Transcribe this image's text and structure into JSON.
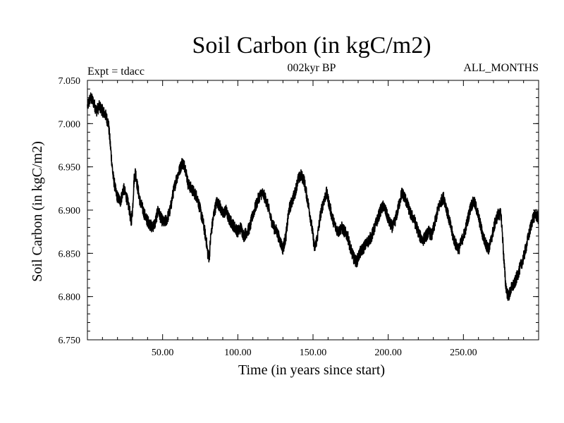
{
  "chart_data": {
    "type": "line",
    "title": "Soil Carbon (in kgC/m2)",
    "subtitle": "002kyr BP",
    "left_label": "Expt = tdacc",
    "right_label": "ALL_MONTHS",
    "xlabel": "Time (in years since start)",
    "ylabel": "Soil Carbon (in kgC/m2)",
    "xlim": [
      0,
      300
    ],
    "ylim": [
      6.75,
      7.05
    ],
    "x_ticks": [
      50,
      100,
      150,
      200,
      250
    ],
    "x_tick_labels": [
      "50.00",
      "100.00",
      "150.00",
      "200.00",
      "250.00"
    ],
    "y_ticks": [
      6.75,
      6.8,
      6.85,
      6.9,
      6.95,
      7.0,
      7.05
    ],
    "y_tick_labels": [
      "6.750",
      "6.800",
      "6.850",
      "6.900",
      "6.950",
      "7.000",
      "7.050"
    ],
    "noise_amplitude": 0.007,
    "series": [
      {
        "name": "Soil Carbon",
        "color": "#000000",
        "points": [
          [
            0,
            7.02
          ],
          [
            2,
            7.03
          ],
          [
            4,
            7.025
          ],
          [
            6,
            7.015
          ],
          [
            8,
            7.02
          ],
          [
            10,
            7.015
          ],
          [
            12,
            7.01
          ],
          [
            14,
            7.0
          ],
          [
            15,
            6.98
          ],
          [
            16,
            6.96
          ],
          [
            17,
            6.94
          ],
          [
            18,
            6.93
          ],
          [
            19,
            6.92
          ],
          [
            20,
            6.915
          ],
          [
            22,
            6.91
          ],
          [
            24,
            6.925
          ],
          [
            26,
            6.915
          ],
          [
            28,
            6.9
          ],
          [
            29,
            6.885
          ],
          [
            30,
            6.9
          ],
          [
            31,
            6.935
          ],
          [
            32,
            6.945
          ],
          [
            33,
            6.93
          ],
          [
            35,
            6.91
          ],
          [
            37,
            6.9
          ],
          [
            39,
            6.89
          ],
          [
            41,
            6.885
          ],
          [
            43,
            6.88
          ],
          [
            45,
            6.885
          ],
          [
            47,
            6.9
          ],
          [
            49,
            6.89
          ],
          [
            51,
            6.885
          ],
          [
            53,
            6.89
          ],
          [
            55,
            6.9
          ],
          [
            57,
            6.92
          ],
          [
            59,
            6.935
          ],
          [
            61,
            6.945
          ],
          [
            63,
            6.955
          ],
          [
            65,
            6.95
          ],
          [
            67,
            6.93
          ],
          [
            69,
            6.925
          ],
          [
            71,
            6.92
          ],
          [
            73,
            6.915
          ],
          [
            75,
            6.9
          ],
          [
            77,
            6.885
          ],
          [
            79,
            6.865
          ],
          [
            80,
            6.85
          ],
          [
            81,
            6.845
          ],
          [
            82,
            6.87
          ],
          [
            84,
            6.895
          ],
          [
            86,
            6.91
          ],
          [
            88,
            6.905
          ],
          [
            90,
            6.895
          ],
          [
            92,
            6.9
          ],
          [
            94,
            6.89
          ],
          [
            96,
            6.885
          ],
          [
            98,
            6.88
          ],
          [
            100,
            6.875
          ],
          [
            102,
            6.88
          ],
          [
            104,
            6.87
          ],
          [
            106,
            6.875
          ],
          [
            108,
            6.88
          ],
          [
            110,
            6.895
          ],
          [
            112,
            6.905
          ],
          [
            114,
            6.915
          ],
          [
            116,
            6.92
          ],
          [
            118,
            6.915
          ],
          [
            120,
            6.905
          ],
          [
            122,
            6.89
          ],
          [
            124,
            6.88
          ],
          [
            126,
            6.875
          ],
          [
            128,
            6.865
          ],
          [
            130,
            6.855
          ],
          [
            132,
            6.87
          ],
          [
            134,
            6.9
          ],
          [
            136,
            6.91
          ],
          [
            138,
            6.92
          ],
          [
            140,
            6.935
          ],
          [
            142,
            6.94
          ],
          [
            144,
            6.935
          ],
          [
            146,
            6.915
          ],
          [
            148,
            6.895
          ],
          [
            150,
            6.87
          ],
          [
            151,
            6.855
          ],
          [
            153,
            6.87
          ],
          [
            155,
            6.895
          ],
          [
            157,
            6.91
          ],
          [
            159,
            6.92
          ],
          [
            161,
            6.905
          ],
          [
            163,
            6.89
          ],
          [
            165,
            6.88
          ],
          [
            167,
            6.875
          ],
          [
            169,
            6.88
          ],
          [
            171,
            6.875
          ],
          [
            173,
            6.87
          ],
          [
            175,
            6.855
          ],
          [
            177,
            6.845
          ],
          [
            179,
            6.84
          ],
          [
            181,
            6.85
          ],
          [
            183,
            6.855
          ],
          [
            185,
            6.86
          ],
          [
            187,
            6.865
          ],
          [
            189,
            6.87
          ],
          [
            191,
            6.88
          ],
          [
            193,
            6.89
          ],
          [
            195,
            6.9
          ],
          [
            197,
            6.905
          ],
          [
            199,
            6.895
          ],
          [
            201,
            6.885
          ],
          [
            203,
            6.88
          ],
          [
            205,
            6.89
          ],
          [
            207,
            6.905
          ],
          [
            209,
            6.92
          ],
          [
            211,
            6.915
          ],
          [
            213,
            6.905
          ],
          [
            215,
            6.895
          ],
          [
            217,
            6.89
          ],
          [
            219,
            6.88
          ],
          [
            221,
            6.87
          ],
          [
            223,
            6.865
          ],
          [
            225,
            6.87
          ],
          [
            227,
            6.875
          ],
          [
            229,
            6.87
          ],
          [
            231,
            6.885
          ],
          [
            233,
            6.9
          ],
          [
            235,
            6.91
          ],
          [
            237,
            6.915
          ],
          [
            239,
            6.9
          ],
          [
            241,
            6.885
          ],
          [
            243,
            6.87
          ],
          [
            245,
            6.86
          ],
          [
            247,
            6.855
          ],
          [
            249,
            6.865
          ],
          [
            251,
            6.875
          ],
          [
            253,
            6.89
          ],
          [
            255,
            6.905
          ],
          [
            257,
            6.91
          ],
          [
            259,
            6.9
          ],
          [
            261,
            6.885
          ],
          [
            263,
            6.87
          ],
          [
            265,
            6.86
          ],
          [
            267,
            6.855
          ],
          [
            269,
            6.87
          ],
          [
            271,
            6.885
          ],
          [
            273,
            6.895
          ],
          [
            275,
            6.895
          ],
          [
            276,
            6.87
          ],
          [
            277,
            6.84
          ],
          [
            278,
            6.815
          ],
          [
            279,
            6.805
          ],
          [
            280,
            6.8
          ],
          [
            282,
            6.81
          ],
          [
            284,
            6.815
          ],
          [
            286,
            6.825
          ],
          [
            288,
            6.835
          ],
          [
            290,
            6.845
          ],
          [
            292,
            6.86
          ],
          [
            294,
            6.875
          ],
          [
            296,
            6.89
          ],
          [
            298,
            6.895
          ],
          [
            300,
            6.89
          ]
        ]
      }
    ]
  }
}
